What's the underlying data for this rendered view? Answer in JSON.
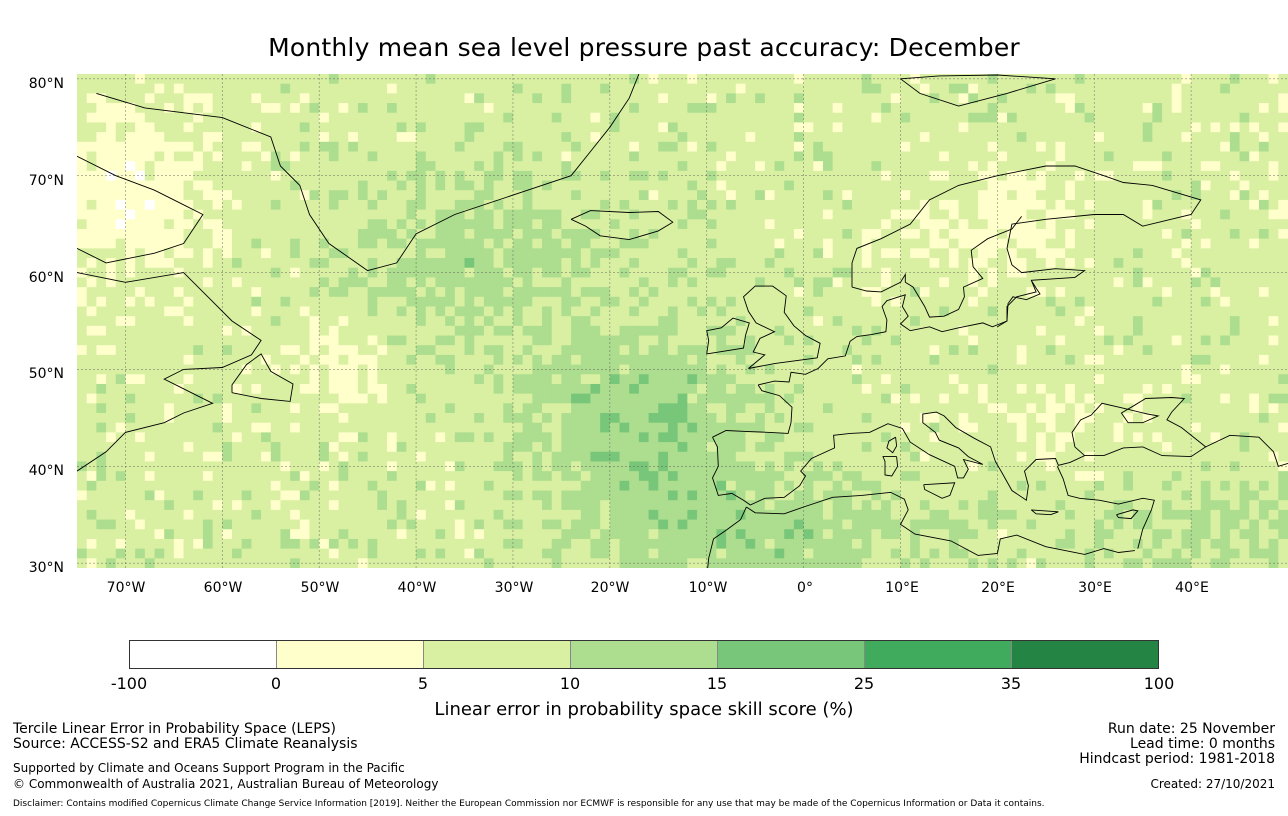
{
  "title": "Monthly mean sea level pressure past accuracy: December",
  "map": {
    "lat_labels": [
      "80°N",
      "70°N",
      "60°N",
      "50°N",
      "40°N",
      "30°N"
    ],
    "lat_values": [
      80,
      70,
      60,
      50,
      40,
      30
    ],
    "lon_labels": [
      "70°W",
      "60°W",
      "50°W",
      "40°W",
      "30°W",
      "20°W",
      "10°W",
      "0°",
      "10°E",
      "20°E",
      "30°E",
      "40°E"
    ],
    "lon_values": [
      -70,
      -60,
      -50,
      -40,
      -30,
      -20,
      -10,
      0,
      10,
      20,
      30,
      40
    ],
    "lon_range": [
      -75,
      50
    ],
    "lat_range": [
      29.5,
      80.5
    ],
    "coastline_color": "#000000",
    "grid_color": "#555555"
  },
  "colorbar": {
    "ticks": [
      "-100",
      "0",
      "5",
      "10",
      "15",
      "25",
      "35",
      "100"
    ],
    "colors": [
      "#ffffff",
      "#ffffcc",
      "#d9f0a3",
      "#addd8e",
      "#78c679",
      "#41ab5d",
      "#238443"
    ],
    "label": "Linear error in probability space skill score (%)"
  },
  "info": {
    "method": "Tercile Linear Error in Probability Space (LEPS)",
    "source": "Source: ACCESS-S2 and ERA5 Climate Reanalysis",
    "supported": "Supported by Climate and Oceans Support Program in the Pacific",
    "copyright": "© Commonwealth of Australia 2021, Australian Bureau of Meteorology",
    "run_date": "Run date: 25 November",
    "lead_time": "Lead time: 0 months",
    "hindcast": "Hindcast period: 1981-2018",
    "created": "Created: 27/10/2021",
    "disclaimer": "Disclaimer: Contains modified Copernicus Climate Change Service Information [2019]. Neither the European Commission nor ECMWF is responsible for any use that may be made of the Copernicus Information or Data it contains."
  }
}
